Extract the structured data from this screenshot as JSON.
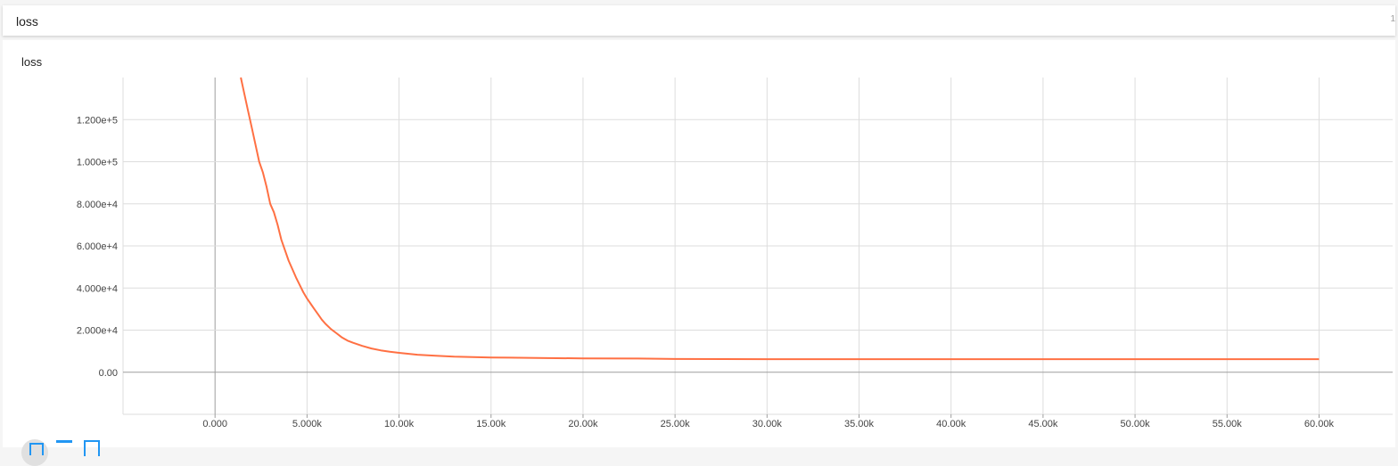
{
  "header": {
    "title": "loss",
    "count": "1"
  },
  "card": {
    "title": "loss"
  },
  "controls": {
    "icons": [
      "fit-domain-icon",
      "toggle-log-scale-icon",
      "download-icon"
    ]
  },
  "colors": {
    "series": "#ff7043",
    "grid": "#dddddd",
    "axis": "#9e9e9e"
  },
  "chart_data": {
    "type": "line",
    "title": "loss",
    "xlabel": "",
    "ylabel": "",
    "xlim": [
      -5000,
      64000
    ],
    "ylim": [
      -20000,
      140000
    ],
    "xticks": [
      0,
      5000,
      10000,
      15000,
      20000,
      25000,
      30000,
      35000,
      40000,
      45000,
      50000,
      55000,
      60000
    ],
    "xtick_labels": [
      "0.000",
      "5.000k",
      "10.00k",
      "15.00k",
      "20.00k",
      "25.00k",
      "30.00k",
      "35.00k",
      "40.00k",
      "45.00k",
      "50.00k",
      "55.00k",
      "60.00k"
    ],
    "yticks": [
      0,
      20000,
      40000,
      60000,
      80000,
      100000,
      120000
    ],
    "ytick_labels": [
      "0.00",
      "2.000e+4",
      "4.000e+4",
      "6.000e+4",
      "8.000e+4",
      "1.000e+5",
      "1.200e+5"
    ],
    "grid": true,
    "series": [
      {
        "color": "#ff7043",
        "x": [
          1400,
          1600,
          1800,
          2000,
          2200,
          2400,
          2600,
          2800,
          3000,
          3200,
          3400,
          3600,
          3800,
          4000,
          4200,
          4400,
          4600,
          4800,
          5000,
          5200,
          5400,
          5600,
          5800,
          6000,
          6300,
          6600,
          6900,
          7200,
          7500,
          8000,
          8500,
          9000,
          9500,
          10000,
          11000,
          12000,
          13000,
          14000,
          15000,
          16000,
          18000,
          20000,
          23000,
          25000,
          30000,
          35000,
          40000,
          45000,
          50000,
          55000,
          60000
        ],
        "y": [
          140000,
          132000,
          124000,
          116000,
          108000,
          100000,
          95000,
          88000,
          80000,
          76000,
          70000,
          63000,
          58000,
          53000,
          49000,
          45000,
          41500,
          38000,
          35000,
          32500,
          30000,
          27500,
          25000,
          23000,
          20500,
          18500,
          16500,
          15000,
          14000,
          12500,
          11300,
          10400,
          9700,
          9200,
          8300,
          7800,
          7400,
          7200,
          7000,
          6900,
          6700,
          6600,
          6500,
          6300,
          6200,
          6200,
          6200,
          6200,
          6200,
          6200,
          6200
        ]
      }
    ]
  }
}
